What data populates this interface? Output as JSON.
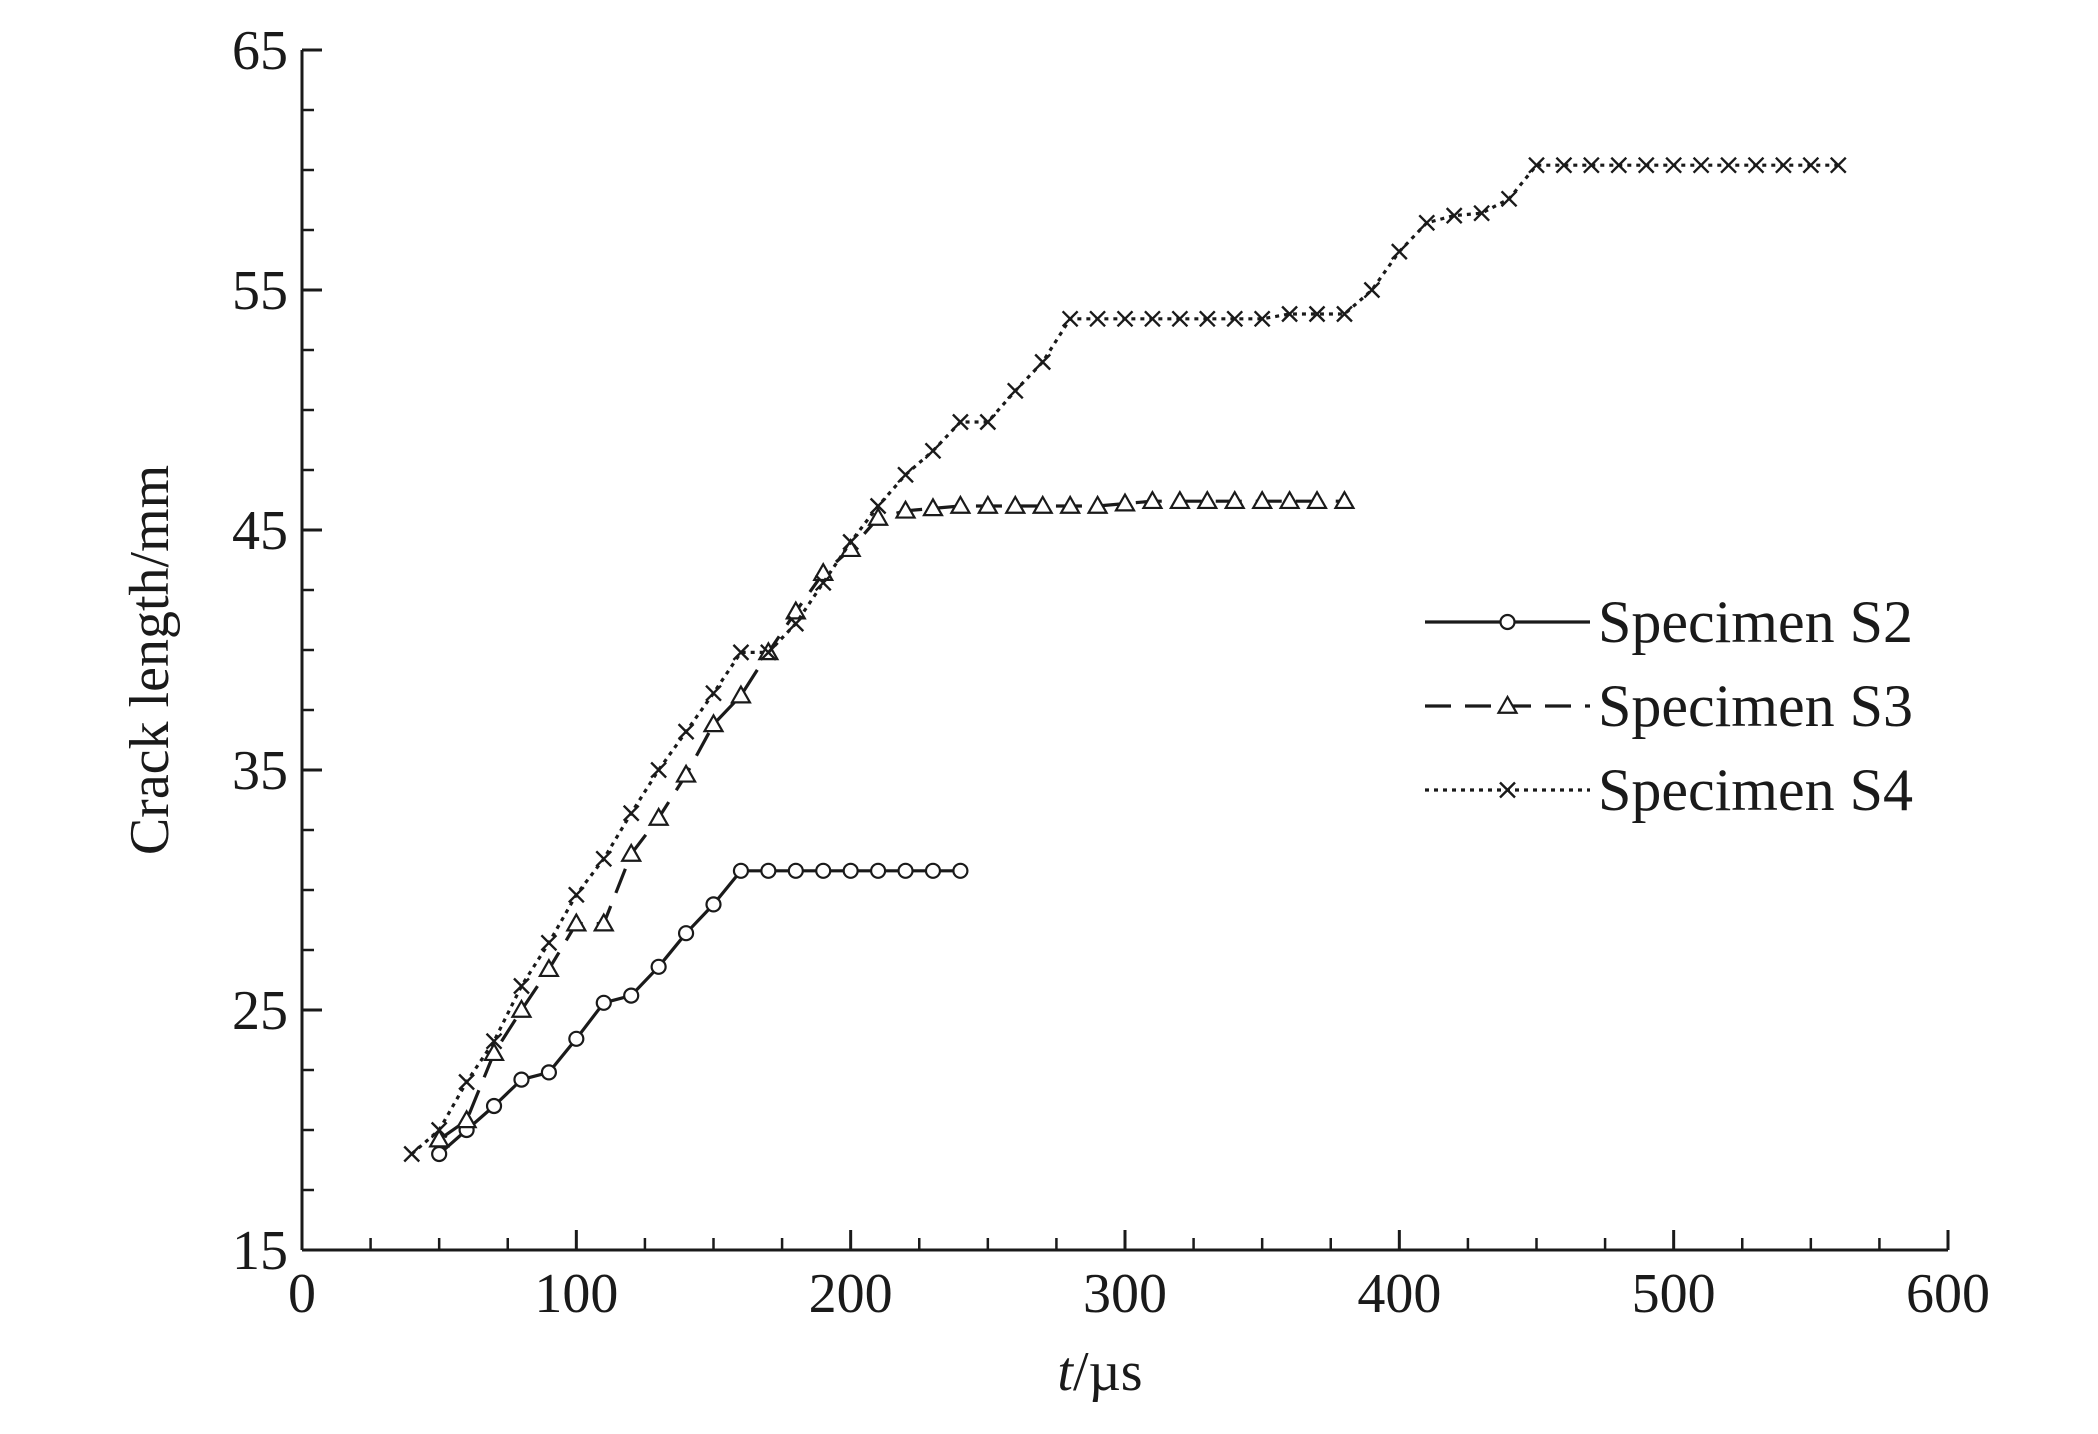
{
  "chart_data": {
    "type": "line",
    "title": "",
    "xlabel_italic": "t",
    "xlabel_unit": "/µs",
    "ylabel": "Crack length/mm",
    "xlim": [
      0,
      600
    ],
    "ylim": [
      15,
      65
    ],
    "xticks": [
      "0",
      "100",
      "200",
      "300",
      "400",
      "500",
      "600"
    ],
    "yticks": [
      "15",
      "25",
      "35",
      "45",
      "55",
      "65"
    ],
    "grid": false,
    "legend_position": "right-middle",
    "series": [
      {
        "name": "Specimen S2",
        "line_style": "solid",
        "marker": "circle",
        "points": [
          [
            50,
            19.0
          ],
          [
            60,
            20.0
          ],
          [
            70,
            21.0
          ],
          [
            80,
            22.1
          ],
          [
            90,
            22.4
          ],
          [
            100,
            23.8
          ],
          [
            110,
            25.3
          ],
          [
            120,
            25.6
          ],
          [
            130,
            26.8
          ],
          [
            140,
            28.2
          ],
          [
            150,
            29.4
          ],
          [
            160,
            30.8
          ],
          [
            170,
            30.8
          ],
          [
            180,
            30.8
          ],
          [
            190,
            30.8
          ],
          [
            200,
            30.8
          ],
          [
            210,
            30.8
          ],
          [
            220,
            30.8
          ],
          [
            230,
            30.8
          ],
          [
            240,
            30.8
          ]
        ]
      },
      {
        "name": "Specimen S3",
        "line_style": "dashed",
        "marker": "triangle",
        "points": [
          [
            50,
            19.6
          ],
          [
            60,
            20.4
          ],
          [
            70,
            23.2
          ],
          [
            80,
            25.0
          ],
          [
            90,
            26.7
          ],
          [
            100,
            28.6
          ],
          [
            110,
            28.6
          ],
          [
            120,
            31.5
          ],
          [
            130,
            33.0
          ],
          [
            140,
            34.8
          ],
          [
            150,
            36.9
          ],
          [
            160,
            38.1
          ],
          [
            170,
            39.9
          ],
          [
            180,
            41.6
          ],
          [
            190,
            43.2
          ],
          [
            200,
            44.2
          ],
          [
            210,
            45.5
          ],
          [
            220,
            45.8
          ],
          [
            230,
            45.9
          ],
          [
            240,
            46.0
          ],
          [
            250,
            46.0
          ],
          [
            260,
            46.0
          ],
          [
            270,
            46.0
          ],
          [
            280,
            46.0
          ],
          [
            290,
            46.0
          ],
          [
            300,
            46.1
          ],
          [
            310,
            46.2
          ],
          [
            320,
            46.2
          ],
          [
            330,
            46.2
          ],
          [
            340,
            46.2
          ],
          [
            350,
            46.2
          ],
          [
            360,
            46.2
          ],
          [
            370,
            46.2
          ],
          [
            380,
            46.2
          ]
        ]
      },
      {
        "name": "Specimen S4",
        "line_style": "dotted",
        "marker": "x",
        "points": [
          [
            40,
            19.0
          ],
          [
            50,
            20.0
          ],
          [
            60,
            22.0
          ],
          [
            70,
            23.7
          ],
          [
            80,
            26.0
          ],
          [
            90,
            27.8
          ],
          [
            100,
            29.8
          ],
          [
            110,
            31.3
          ],
          [
            120,
            33.2
          ],
          [
            130,
            35.0
          ],
          [
            140,
            36.6
          ],
          [
            150,
            38.2
          ],
          [
            160,
            39.9
          ],
          [
            170,
            39.9
          ],
          [
            180,
            41.1
          ],
          [
            190,
            42.8
          ],
          [
            200,
            44.5
          ],
          [
            210,
            46.0
          ],
          [
            220,
            47.3
          ],
          [
            230,
            48.3
          ],
          [
            240,
            49.5
          ],
          [
            250,
            49.5
          ],
          [
            260,
            50.8
          ],
          [
            270,
            52.0
          ],
          [
            280,
            53.8
          ],
          [
            290,
            53.8
          ],
          [
            300,
            53.8
          ],
          [
            310,
            53.8
          ],
          [
            320,
            53.8
          ],
          [
            330,
            53.8
          ],
          [
            340,
            53.8
          ],
          [
            350,
            53.8
          ],
          [
            360,
            54.0
          ],
          [
            370,
            54.0
          ],
          [
            380,
            54.0
          ],
          [
            390,
            55.0
          ],
          [
            400,
            56.6
          ],
          [
            410,
            57.8
          ],
          [
            420,
            58.1
          ],
          [
            430,
            58.2
          ],
          [
            440,
            58.8
          ],
          [
            450,
            60.2
          ],
          [
            460,
            60.2
          ],
          [
            470,
            60.2
          ],
          [
            480,
            60.2
          ],
          [
            490,
            60.2
          ],
          [
            500,
            60.2
          ],
          [
            510,
            60.2
          ],
          [
            520,
            60.2
          ],
          [
            530,
            60.2
          ],
          [
            540,
            60.2
          ],
          [
            550,
            60.2
          ],
          [
            560,
            60.2
          ]
        ]
      }
    ]
  }
}
